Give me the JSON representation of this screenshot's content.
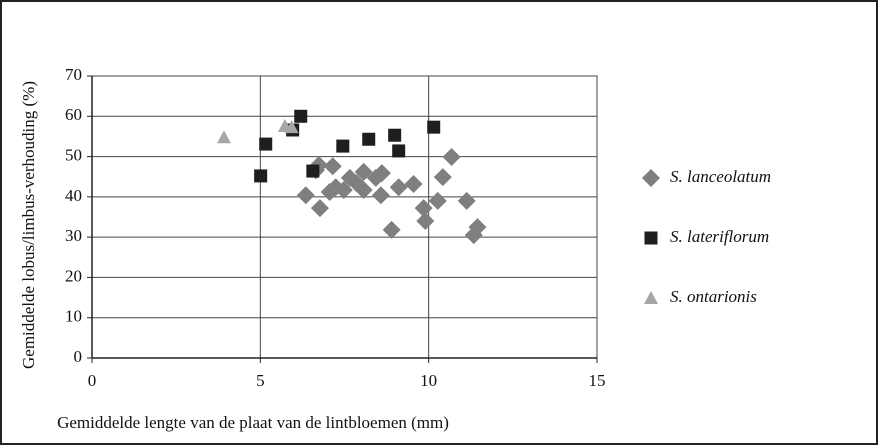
{
  "chart_data": {
    "type": "scatter",
    "xlabel": "Gemiddelde lengte van de plaat van de lintbloemen (mm)",
    "ylabel": "Gemiddelde lobus/limbus-verhouding (%)",
    "xlim": [
      0,
      15
    ],
    "xticks": [
      0,
      5,
      10,
      15
    ],
    "ylim": [
      0,
      70
    ],
    "yticks": [
      0,
      10,
      20,
      30,
      40,
      50,
      60,
      70
    ],
    "grid": true,
    "legend": "right",
    "series": [
      {
        "name": "S. lanceolatum",
        "color": "#7f7f7f",
        "marker": "diamond",
        "x": [
          6.35,
          6.74,
          6.77,
          6.65,
          7.15,
          7.06,
          7.24,
          7.48,
          7.66,
          7.86,
          8.07,
          8.07,
          8.43,
          8.61,
          8.58,
          8.9,
          9.11,
          9.55,
          9.85,
          9.9,
          10.27,
          10.42,
          10.68,
          11.13,
          11.34,
          11.45
        ],
        "y": [
          40.4,
          47.9,
          37.2,
          46.6,
          47.6,
          41.2,
          42.4,
          41.7,
          44.7,
          43.4,
          46.2,
          41.7,
          44.7,
          45.9,
          40.4,
          31.8,
          42.4,
          43.2,
          37.2,
          34.0,
          39.0,
          44.9,
          49.9,
          39.0,
          30.5,
          32.5
        ]
      },
      {
        "name": "S. lateriflorum",
        "color": "#1e1e1e",
        "marker": "square",
        "x": [
          5.16,
          5.01,
          5.96,
          6.2,
          6.56,
          7.45,
          8.22,
          8.99,
          9.11,
          10.15
        ],
        "y": [
          53.1,
          45.2,
          56.6,
          60.0,
          46.4,
          52.6,
          54.3,
          55.3,
          51.4,
          57.3
        ]
      },
      {
        "name": "S. ontarionis",
        "color": "#a6a6a6",
        "marker": "triangle",
        "x": [
          3.92,
          5.73,
          5.93
        ],
        "y": [
          54.8,
          57.6,
          57.3
        ]
      }
    ]
  }
}
